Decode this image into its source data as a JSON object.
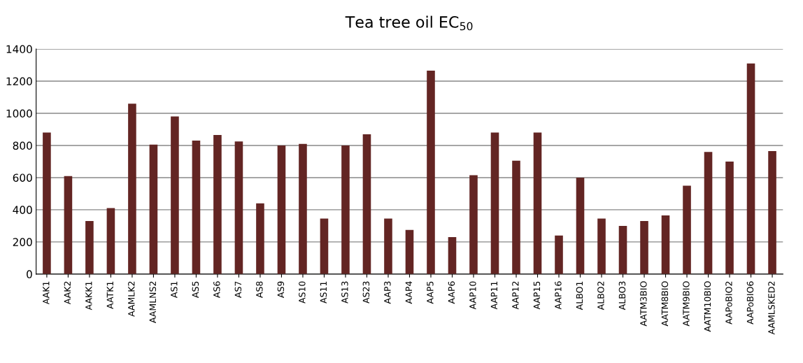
{
  "chart_data": {
    "type": "bar",
    "title": "Tea tree oil EC$_{50}$",
    "categories": [
      "AAK1",
      "AAK2",
      "AAKK1",
      "AATK1",
      "AAMLK2",
      "AAMLNS2",
      "AS1",
      "AS5",
      "AS6",
      "AS7",
      "AS8",
      "AS9",
      "AS10",
      "AS11",
      "AS13",
      "AS23",
      "AAP3",
      "AAP4",
      "AAP5",
      "AAP6",
      "AAP10",
      "AAP11",
      "AAP12",
      "AAP15",
      "AAP16",
      "ALBO1",
      "ALBO2",
      "ALBO3",
      "AATM3BIO",
      "AATM8BIO",
      "AATM9BIO",
      "AATM10BIO",
      "AAPoBIO2",
      "AAPoBIO6",
      "AAMLSKED2"
    ],
    "values": [
      880,
      610,
      330,
      410,
      1060,
      805,
      980,
      830,
      865,
      825,
      440,
      800,
      810,
      345,
      800,
      870,
      345,
      275,
      1265,
      230,
      615,
      880,
      705,
      880,
      240,
      600,
      345,
      300,
      330,
      365,
      550,
      760,
      700,
      1310,
      765
    ],
    "color": "#632523",
    "ylim": [
      0,
      1400
    ],
    "yticks": [
      0,
      200,
      400,
      600,
      800,
      1000,
      1200,
      1400
    ],
    "grid": "y"
  }
}
